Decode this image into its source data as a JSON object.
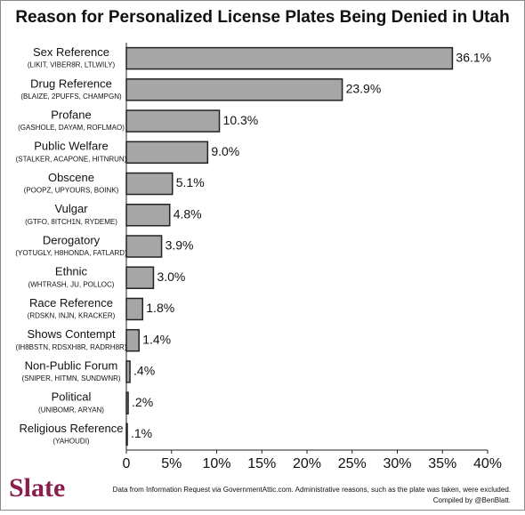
{
  "chart_data": {
    "type": "bar",
    "orientation": "horizontal",
    "title": "Reason for Personalized License Plates Being Denied in Utah",
    "categories": [
      "Sex Reference",
      "Drug Reference",
      "Profane",
      "Public Welfare",
      "Obscene",
      "Vulgar",
      "Derogatory",
      "Ethnic",
      "Race Reference",
      "Shows Contempt",
      "Non-Public Forum",
      "Political",
      "Religious Reference"
    ],
    "examples": [
      "(LIKIT, VIBER8R, LTLWILY)",
      "(BLAIZE, 2PUFFS, CHAMPGN)",
      "(GASHOLE, DAYAM, ROFLMAO)",
      "(STALKER, ACAPONE, HITNRUN)",
      "(POOPZ, UPYOURS, BOINK)",
      "(GTFO, 8ITCH1N, RYDEME)",
      "(YOTUGLY, H8HONDA, FATLARD)",
      "(WHTRASH, JU, POLLOC)",
      "(RDSKN, INJN, KRACKER)",
      "(IH8BSTN, RDSXH8R, RADRH8R)",
      "(SNIPER, HITMN, SUNDWNR)",
      "(UNIBOMR, ARYAN)",
      "(YAHOUDI)"
    ],
    "values": [
      36.1,
      23.9,
      10.3,
      9.0,
      5.1,
      4.8,
      3.9,
      3.0,
      1.8,
      1.4,
      0.4,
      0.2,
      0.1
    ],
    "value_labels": [
      "36.1%",
      "23.9%",
      "10.3%",
      "9.0%",
      "5.1%",
      "4.8%",
      "3.9%",
      "3.0%",
      "1.8%",
      "1.4%",
      ".4%",
      ".2%",
      ".1%"
    ],
    "color": "#a6a6a6",
    "xlim": [
      0,
      40
    ],
    "xticks": [
      0,
      {
        "value": 5,
        "label": "5%"
      },
      {
        "value": 10,
        "label": "10%"
      },
      {
        "value": 15,
        "label": "15%"
      },
      {
        "value": 20,
        "label": "20%"
      },
      {
        "value": 25,
        "label": "25%"
      },
      {
        "value": 30,
        "label": "30%"
      },
      {
        "value": 35,
        "label": "35%"
      },
      {
        "value": 40,
        "label": "40%"
      }
    ]
  },
  "footer": {
    "logo": "Slate",
    "source": "Data from Information Request via GovernmentAttic.com. Administrative reasons, such as the plate was taken, were excluded.",
    "credit": "Compiled by @BenBlatt."
  }
}
